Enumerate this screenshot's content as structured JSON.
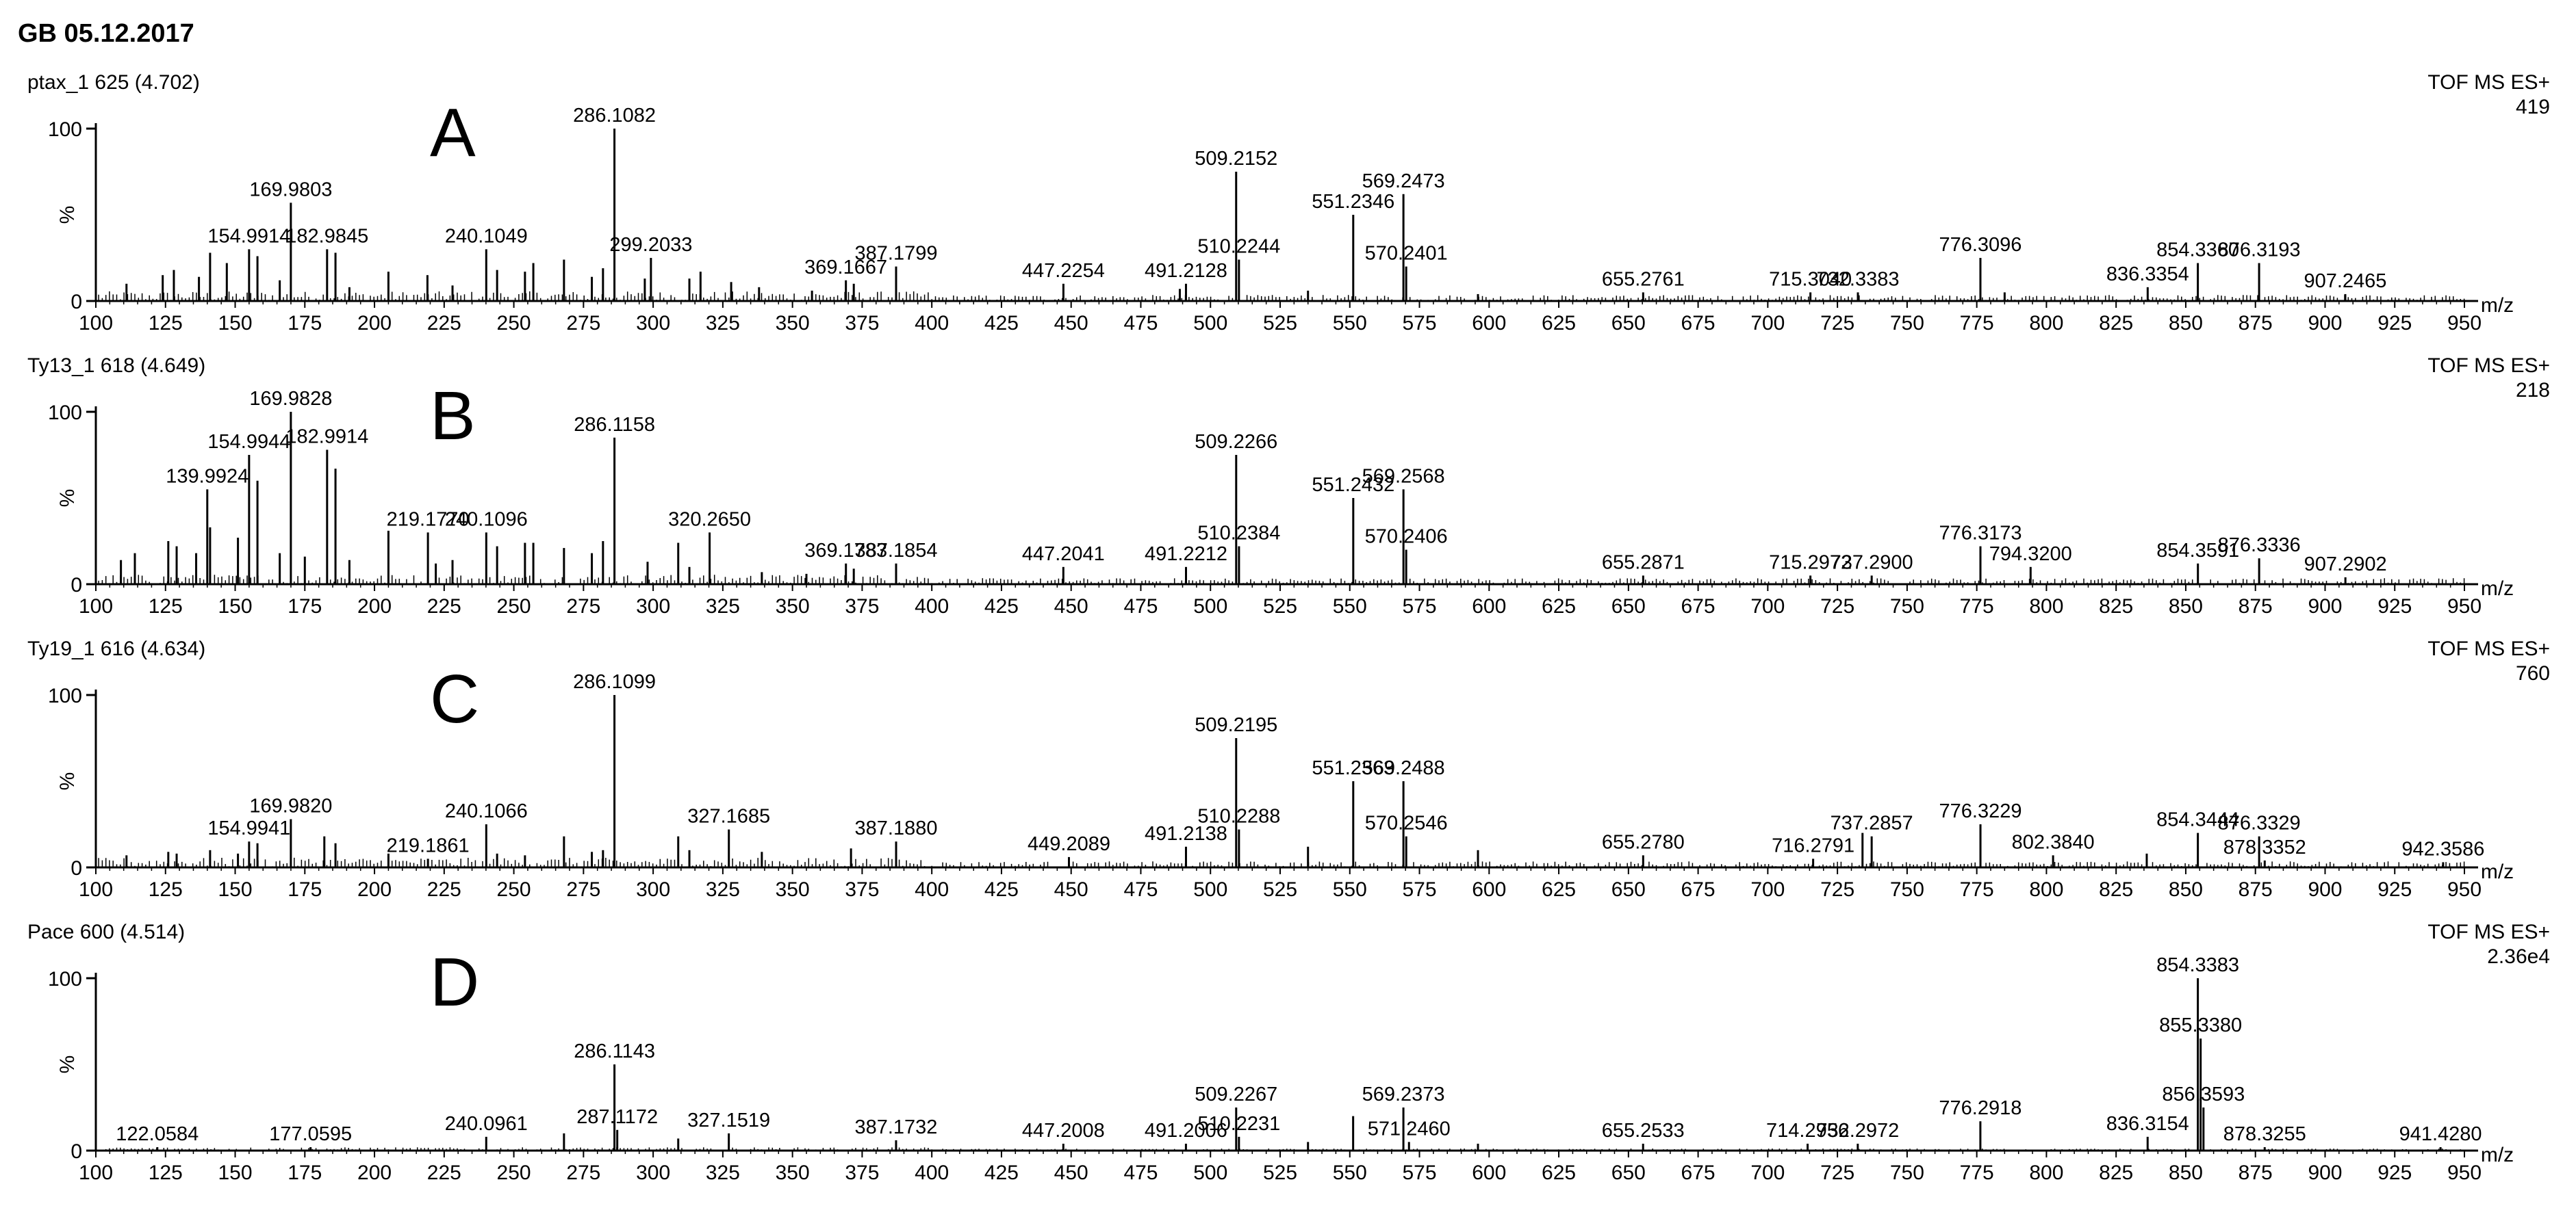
{
  "header": {
    "title": "GB 05.12.2017"
  },
  "chart_data": [
    {
      "type": "bar",
      "panel_letter": "A",
      "sample": "ptax_1 625 (4.702)",
      "mode": "TOF MS ES+",
      "intensity": "419",
      "ylabel": "%",
      "xlabel": "m/z",
      "xlim": [
        100,
        950
      ],
      "ylim": [
        0,
        100
      ],
      "x_ticks": [
        100,
        125,
        150,
        175,
        200,
        225,
        250,
        275,
        300,
        325,
        350,
        375,
        400,
        425,
        450,
        475,
        500,
        525,
        550,
        575,
        600,
        625,
        650,
        675,
        700,
        725,
        750,
        775,
        800,
        825,
        850,
        875,
        900,
        925,
        950
      ],
      "y_ticks": [
        0,
        100
      ],
      "peaks": [
        {
          "mz": 154.9914,
          "rel": 30,
          "label": "154.9914"
        },
        {
          "mz": 169.9803,
          "rel": 57,
          "label": "169.9803"
        },
        {
          "mz": 182.9845,
          "rel": 30,
          "label": "182.9845"
        },
        {
          "mz": 240.1049,
          "rel": 30,
          "label": "240.1049"
        },
        {
          "mz": 286.1082,
          "rel": 100,
          "label": "286.1082"
        },
        {
          "mz": 299.2033,
          "rel": 25,
          "label": "299.2033"
        },
        {
          "mz": 369.1667,
          "rel": 12,
          "label": "369.1667"
        },
        {
          "mz": 387.1799,
          "rel": 20,
          "label": "387.1799"
        },
        {
          "mz": 447.2254,
          "rel": 10,
          "label": "447.2254"
        },
        {
          "mz": 491.2128,
          "rel": 10,
          "label": "491.2128"
        },
        {
          "mz": 509.2152,
          "rel": 75,
          "label": "509.2152"
        },
        {
          "mz": 510.2244,
          "rel": 24,
          "label": "510.2244"
        },
        {
          "mz": 551.2346,
          "rel": 50,
          "label": "551.2346"
        },
        {
          "mz": 569.2473,
          "rel": 62,
          "label": "569.2473"
        },
        {
          "mz": 570.2401,
          "rel": 20,
          "label": "570.2401"
        },
        {
          "mz": 655.2761,
          "rel": 5,
          "label": "655.2761"
        },
        {
          "mz": 715.304,
          "rel": 5,
          "label": "715.3040"
        },
        {
          "mz": 732.3383,
          "rel": 5,
          "label": "732.3383"
        },
        {
          "mz": 776.3096,
          "rel": 25,
          "label": "776.3096"
        },
        {
          "mz": 836.3354,
          "rel": 8,
          "label": "836.3354"
        },
        {
          "mz": 854.336,
          "rel": 22,
          "label": "854.3360"
        },
        {
          "mz": 876.3193,
          "rel": 22,
          "label": "876.3193"
        },
        {
          "mz": 907.2465,
          "rel": 4,
          "label": "907.2465"
        },
        {
          "mz": 111,
          "rel": 10
        },
        {
          "mz": 124,
          "rel": 15
        },
        {
          "mz": 128,
          "rel": 18
        },
        {
          "mz": 137,
          "rel": 14
        },
        {
          "mz": 141,
          "rel": 28
        },
        {
          "mz": 147,
          "rel": 22
        },
        {
          "mz": 158,
          "rel": 26
        },
        {
          "mz": 166,
          "rel": 12
        },
        {
          "mz": 186,
          "rel": 28
        },
        {
          "mz": 191,
          "rel": 8
        },
        {
          "mz": 205,
          "rel": 17
        },
        {
          "mz": 219,
          "rel": 15
        },
        {
          "mz": 228,
          "rel": 9
        },
        {
          "mz": 244,
          "rel": 18
        },
        {
          "mz": 254,
          "rel": 17
        },
        {
          "mz": 257,
          "rel": 22
        },
        {
          "mz": 268,
          "rel": 24
        },
        {
          "mz": 278,
          "rel": 14
        },
        {
          "mz": 282,
          "rel": 19
        },
        {
          "mz": 297,
          "rel": 13
        },
        {
          "mz": 313,
          "rel": 13
        },
        {
          "mz": 317,
          "rel": 17
        },
        {
          "mz": 328,
          "rel": 11
        },
        {
          "mz": 338,
          "rel": 8
        },
        {
          "mz": 357,
          "rel": 6
        },
        {
          "mz": 372,
          "rel": 10
        },
        {
          "mz": 489,
          "rel": 7
        },
        {
          "mz": 535,
          "rel": 6
        },
        {
          "mz": 596,
          "rel": 4
        },
        {
          "mz": 785,
          "rel": 5
        }
      ]
    },
    {
      "type": "bar",
      "panel_letter": "B",
      "sample": "Ty13_1 618 (4.649)",
      "mode": "TOF MS ES+",
      "intensity": "218",
      "ylabel": "%",
      "xlabel": "m/z",
      "xlim": [
        100,
        950
      ],
      "ylim": [
        0,
        100
      ],
      "x_ticks": [
        100,
        125,
        150,
        175,
        200,
        225,
        250,
        275,
        300,
        325,
        350,
        375,
        400,
        425,
        450,
        475,
        500,
        525,
        550,
        575,
        600,
        625,
        650,
        675,
        700,
        725,
        750,
        775,
        800,
        825,
        850,
        875,
        900,
        925,
        950
      ],
      "y_ticks": [
        0,
        100
      ],
      "peaks": [
        {
          "mz": 139.9924,
          "rel": 55,
          "label": "139.9924"
        },
        {
          "mz": 154.9944,
          "rel": 75,
          "label": "154.9944"
        },
        {
          "mz": 169.9828,
          "rel": 100,
          "label": "169.9828"
        },
        {
          "mz": 182.9914,
          "rel": 78,
          "label": "182.9914"
        },
        {
          "mz": 219.177,
          "rel": 30,
          "label": "219.1770"
        },
        {
          "mz": 240.1096,
          "rel": 30,
          "label": "240.1096"
        },
        {
          "mz": 286.1158,
          "rel": 85,
          "label": "286.1158"
        },
        {
          "mz": 320.265,
          "rel": 30,
          "label": "320.2650"
        },
        {
          "mz": 369.1783,
          "rel": 12,
          "label": "369.1783"
        },
        {
          "mz": 387.1854,
          "rel": 12,
          "label": "387.1854"
        },
        {
          "mz": 447.2041,
          "rel": 10,
          "label": "447.2041"
        },
        {
          "mz": 491.2212,
          "rel": 10,
          "label": "491.2212"
        },
        {
          "mz": 509.2266,
          "rel": 75,
          "label": "509.2266"
        },
        {
          "mz": 510.2384,
          "rel": 22,
          "label": "510.2384"
        },
        {
          "mz": 551.2432,
          "rel": 50,
          "label": "551.2432"
        },
        {
          "mz": 569.2568,
          "rel": 55,
          "label": "569.2568"
        },
        {
          "mz": 570.2406,
          "rel": 20,
          "label": "570.2406"
        },
        {
          "mz": 655.2871,
          "rel": 5,
          "label": "655.2871"
        },
        {
          "mz": 715.2972,
          "rel": 5,
          "label": "715.2972"
        },
        {
          "mz": 737.29,
          "rel": 5,
          "label": "737.2900"
        },
        {
          "mz": 776.3173,
          "rel": 22,
          "label": "776.3173"
        },
        {
          "mz": 794.32,
          "rel": 10,
          "label": "794.3200"
        },
        {
          "mz": 854.3591,
          "rel": 12,
          "label": "854.3591"
        },
        {
          "mz": 876.3336,
          "rel": 15,
          "label": "876.3336"
        },
        {
          "mz": 907.2902,
          "rel": 4,
          "label": "907.2902"
        },
        {
          "mz": 109,
          "rel": 14
        },
        {
          "mz": 114,
          "rel": 18
        },
        {
          "mz": 126,
          "rel": 25
        },
        {
          "mz": 129,
          "rel": 22
        },
        {
          "mz": 136,
          "rel": 18
        },
        {
          "mz": 141,
          "rel": 33
        },
        {
          "mz": 151,
          "rel": 27
        },
        {
          "mz": 158,
          "rel": 60
        },
        {
          "mz": 166,
          "rel": 18
        },
        {
          "mz": 175,
          "rel": 16
        },
        {
          "mz": 186,
          "rel": 67
        },
        {
          "mz": 191,
          "rel": 14
        },
        {
          "mz": 205,
          "rel": 31
        },
        {
          "mz": 222,
          "rel": 12
        },
        {
          "mz": 228,
          "rel": 14
        },
        {
          "mz": 244,
          "rel": 22
        },
        {
          "mz": 254,
          "rel": 24
        },
        {
          "mz": 257,
          "rel": 24
        },
        {
          "mz": 268,
          "rel": 21
        },
        {
          "mz": 278,
          "rel": 18
        },
        {
          "mz": 282,
          "rel": 25
        },
        {
          "mz": 298,
          "rel": 13
        },
        {
          "mz": 309,
          "rel": 24
        },
        {
          "mz": 313,
          "rel": 10
        },
        {
          "mz": 339,
          "rel": 7
        },
        {
          "mz": 355,
          "rel": 6
        },
        {
          "mz": 372,
          "rel": 9
        }
      ]
    },
    {
      "type": "bar",
      "panel_letter": "C",
      "sample": "Ty19_1 616 (4.634)",
      "mode": "TOF MS ES+",
      "intensity": "760",
      "ylabel": "%",
      "xlabel": "m/z",
      "xlim": [
        100,
        950
      ],
      "ylim": [
        0,
        100
      ],
      "x_ticks": [
        100,
        125,
        150,
        175,
        200,
        225,
        250,
        275,
        300,
        325,
        350,
        375,
        400,
        425,
        450,
        475,
        500,
        525,
        550,
        575,
        600,
        625,
        650,
        675,
        700,
        725,
        750,
        775,
        800,
        825,
        850,
        875,
        900,
        925,
        950
      ],
      "y_ticks": [
        0,
        100
      ],
      "peaks": [
        {
          "mz": 154.9941,
          "rel": 15,
          "label": "154.9941"
        },
        {
          "mz": 169.982,
          "rel": 28,
          "label": "169.9820"
        },
        {
          "mz": 219.1861,
          "rel": 5,
          "label": "219.1861"
        },
        {
          "mz": 240.1066,
          "rel": 25,
          "label": "240.1066"
        },
        {
          "mz": 286.1099,
          "rel": 100,
          "label": "286.1099"
        },
        {
          "mz": 327.1685,
          "rel": 22,
          "label": "327.1685"
        },
        {
          "mz": 387.188,
          "rel": 15,
          "label": "387.1880"
        },
        {
          "mz": 449.2089,
          "rel": 6,
          "label": "449.2089"
        },
        {
          "mz": 491.2138,
          "rel": 12,
          "label": "491.2138"
        },
        {
          "mz": 509.2195,
          "rel": 75,
          "label": "509.2195"
        },
        {
          "mz": 510.2288,
          "rel": 22,
          "label": "510.2288"
        },
        {
          "mz": 551.2363,
          "rel": 50,
          "label": "551.2363"
        },
        {
          "mz": 569.2488,
          "rel": 50,
          "label": "569.2488"
        },
        {
          "mz": 570.2546,
          "rel": 18,
          "label": "570.2546"
        },
        {
          "mz": 655.278,
          "rel": 7,
          "label": "655.2780"
        },
        {
          "mz": 716.2791,
          "rel": 5,
          "label": "716.2791"
        },
        {
          "mz": 737.2857,
          "rel": 18,
          "label": "737.2857"
        },
        {
          "mz": 776.3229,
          "rel": 25,
          "label": "776.3229"
        },
        {
          "mz": 802.384,
          "rel": 7,
          "label": "802.3840"
        },
        {
          "mz": 854.3444,
          "rel": 20,
          "label": "854.3444"
        },
        {
          "mz": 876.3329,
          "rel": 18,
          "label": "876.3329"
        },
        {
          "mz": 878.3352,
          "rel": 4,
          "label": "878.3352"
        },
        {
          "mz": 942.3586,
          "rel": 3,
          "label": "942.3586"
        },
        {
          "mz": 111,
          "rel": 7
        },
        {
          "mz": 126,
          "rel": 9
        },
        {
          "mz": 129,
          "rel": 8
        },
        {
          "mz": 141,
          "rel": 10
        },
        {
          "mz": 151,
          "rel": 8
        },
        {
          "mz": 158,
          "rel": 14
        },
        {
          "mz": 182,
          "rel": 18
        },
        {
          "mz": 186,
          "rel": 14
        },
        {
          "mz": 205,
          "rel": 8
        },
        {
          "mz": 244,
          "rel": 8
        },
        {
          "mz": 254,
          "rel": 7
        },
        {
          "mz": 268,
          "rel": 18
        },
        {
          "mz": 278,
          "rel": 9
        },
        {
          "mz": 282,
          "rel": 10
        },
        {
          "mz": 309,
          "rel": 18
        },
        {
          "mz": 313,
          "rel": 10
        },
        {
          "mz": 339,
          "rel": 9
        },
        {
          "mz": 371,
          "rel": 11
        },
        {
          "mz": 535,
          "rel": 12
        },
        {
          "mz": 596,
          "rel": 10
        },
        {
          "mz": 734,
          "rel": 20
        },
        {
          "mz": 836,
          "rel": 8
        }
      ]
    },
    {
      "type": "bar",
      "panel_letter": "D",
      "sample": "Pace 600 (4.514)",
      "mode": "TOF MS ES+",
      "intensity": "2.36e4",
      "ylabel": "%",
      "xlabel": "m/z",
      "xlim": [
        100,
        950
      ],
      "ylim": [
        0,
        100
      ],
      "x_ticks": [
        100,
        125,
        150,
        175,
        200,
        225,
        250,
        275,
        300,
        325,
        350,
        375,
        400,
        425,
        450,
        475,
        500,
        525,
        550,
        575,
        600,
        625,
        650,
        675,
        700,
        725,
        750,
        775,
        800,
        825,
        850,
        875,
        900,
        925,
        950
      ],
      "y_ticks": [
        0,
        100
      ],
      "peaks": [
        {
          "mz": 122.0584,
          "rel": 2,
          "label": "122.0584"
        },
        {
          "mz": 177.0595,
          "rel": 2,
          "label": "177.0595"
        },
        {
          "mz": 240.0961,
          "rel": 8,
          "label": "240.0961"
        },
        {
          "mz": 286.1143,
          "rel": 50,
          "label": "286.1143"
        },
        {
          "mz": 287.1172,
          "rel": 12,
          "label": "287.1172"
        },
        {
          "mz": 327.1519,
          "rel": 10,
          "label": "327.1519"
        },
        {
          "mz": 387.1732,
          "rel": 6,
          "label": "387.1732"
        },
        {
          "mz": 447.2008,
          "rel": 4,
          "label": "447.2008"
        },
        {
          "mz": 491.2006,
          "rel": 4,
          "label": "491.2006"
        },
        {
          "mz": 509.2267,
          "rel": 25,
          "label": "509.2267"
        },
        {
          "mz": 510.2231,
          "rel": 8,
          "label": "510.2231"
        },
        {
          "mz": 551.2,
          "rel": 20
        },
        {
          "mz": 569.2373,
          "rel": 25,
          "label": "569.2373"
        },
        {
          "mz": 571.246,
          "rel": 5,
          "label": "571.2460"
        },
        {
          "mz": 655.2533,
          "rel": 4,
          "label": "655.2533"
        },
        {
          "mz": 714.2956,
          "rel": 4,
          "label": "714.2956"
        },
        {
          "mz": 732.2972,
          "rel": 4,
          "label": "732.2972"
        },
        {
          "mz": 776.2918,
          "rel": 17,
          "label": "776.2918"
        },
        {
          "mz": 836.3154,
          "rel": 8,
          "label": "836.3154"
        },
        {
          "mz": 854.3383,
          "rel": 100,
          "label": "854.3383"
        },
        {
          "mz": 855.338,
          "rel": 65,
          "label": "855.3380"
        },
        {
          "mz": 856.3593,
          "rel": 25,
          "label": "856.3593"
        },
        {
          "mz": 878.3255,
          "rel": 2,
          "label": "878.3255"
        },
        {
          "mz": 941.428,
          "rel": 2,
          "label": "941.4280"
        },
        {
          "mz": 268,
          "rel": 10
        },
        {
          "mz": 309,
          "rel": 7
        },
        {
          "mz": 535,
          "rel": 5
        },
        {
          "mz": 596,
          "rel": 4
        }
      ]
    }
  ]
}
